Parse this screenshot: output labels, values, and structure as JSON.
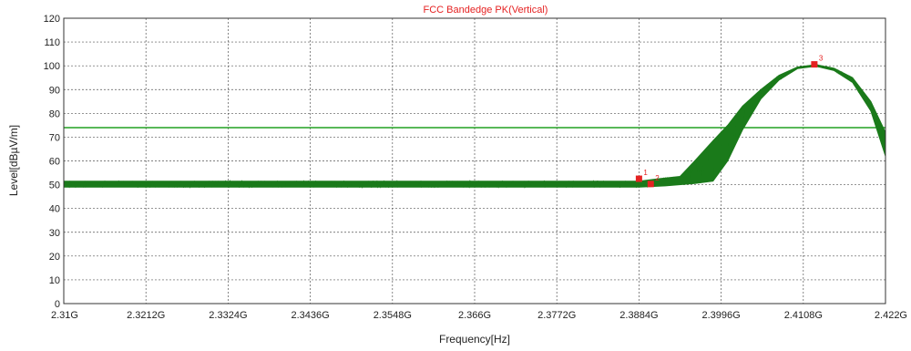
{
  "chart_data": {
    "type": "line",
    "title": "FCC Bandedge PK(Vertical)",
    "xlabel": "Frequency[Hz]",
    "ylabel": "Level[dBµV/m]",
    "xlim": [
      2.31,
      2.422
    ],
    "ylim": [
      0,
      120
    ],
    "x_unit": "GHz",
    "x_ticks": [
      {
        "value": 2.31,
        "label": "2.31G"
      },
      {
        "value": 2.3212,
        "label": "2.3212G"
      },
      {
        "value": 2.3324,
        "label": "2.3324G"
      },
      {
        "value": 2.3436,
        "label": "2.3436G"
      },
      {
        "value": 2.3548,
        "label": "2.3548G"
      },
      {
        "value": 2.366,
        "label": "2.366G"
      },
      {
        "value": 2.3772,
        "label": "2.3772G"
      },
      {
        "value": 2.3884,
        "label": "2.3884G"
      },
      {
        "value": 2.3996,
        "label": "2.3996G"
      },
      {
        "value": 2.4108,
        "label": "2.4108G"
      },
      {
        "value": 2.422,
        "label": "2.422G"
      }
    ],
    "y_ticks": [
      0,
      10,
      20,
      30,
      40,
      50,
      60,
      70,
      80,
      90,
      100,
      110,
      120
    ],
    "grid": true,
    "limit_line": {
      "y": 74,
      "color": "#22a022"
    },
    "series": [
      {
        "color": "#1a7a1a",
        "envelope_upper": [
          [
            2.31,
            51.5
          ],
          [
            2.3884,
            51.5
          ],
          [
            2.391,
            52.5
          ],
          [
            2.394,
            53.5
          ],
          [
            2.396,
            60
          ],
          [
            2.3985,
            68.5
          ],
          [
            2.4005,
            75
          ],
          [
            2.4025,
            83
          ],
          [
            2.405,
            90
          ],
          [
            2.4075,
            96
          ],
          [
            2.41,
            99.5
          ],
          [
            2.4125,
            100.5
          ],
          [
            2.415,
            99
          ],
          [
            2.4175,
            95
          ],
          [
            2.42,
            85
          ],
          [
            2.422,
            72
          ]
        ],
        "envelope_lower": [
          [
            2.31,
            49.0
          ],
          [
            2.3884,
            49.0
          ],
          [
            2.392,
            49.5
          ],
          [
            2.396,
            50.5
          ],
          [
            2.3985,
            51.5
          ],
          [
            2.4005,
            60
          ],
          [
            2.4025,
            73
          ],
          [
            2.405,
            86
          ],
          [
            2.4075,
            94
          ],
          [
            2.41,
            98.8
          ],
          [
            2.4125,
            99.8
          ],
          [
            2.415,
            98
          ],
          [
            2.4175,
            93
          ],
          [
            2.42,
            81
          ],
          [
            2.422,
            62
          ]
        ]
      }
    ],
    "markers": [
      {
        "label": "1",
        "x": 2.3884,
        "y": 52.5,
        "color": "#e52222"
      },
      {
        "label": "2",
        "x": 2.39,
        "y": 50.3,
        "color": "#e52222"
      },
      {
        "label": "3",
        "x": 2.4123,
        "y": 100.6,
        "color": "#e52222"
      }
    ],
    "colors": {
      "title": "#e52222",
      "grid": "#555555",
      "axis_frame": "#333333"
    }
  }
}
